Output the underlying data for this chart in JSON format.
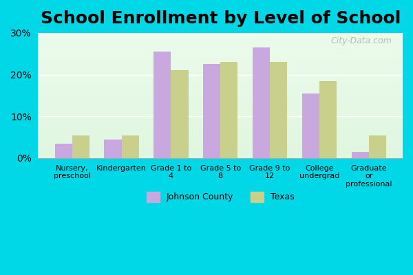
{
  "title": "School Enrollment by Level of School",
  "categories": [
    "Nursery,\npreschool",
    "Kindergarten",
    "Grade 1 to\n4",
    "Grade 5 to\n8",
    "Grade 9 to\n12",
    "College\nundergrad",
    "Graduate\nor\nprofessional"
  ],
  "johnson_county": [
    3.5,
    4.5,
    25.5,
    22.5,
    26.5,
    15.5,
    1.5
  ],
  "texas": [
    5.5,
    5.5,
    21.0,
    23.0,
    23.0,
    18.5,
    5.5
  ],
  "johnson_color": "#c9a8e0",
  "texas_color": "#c8d08c",
  "bg_color_top": "#e8f8e8",
  "bg_color_bottom": "#f8fff8",
  "outer_bg": "#00d8e8",
  "ylim": [
    0,
    30
  ],
  "yticks": [
    0,
    10,
    20,
    30
  ],
  "ytick_labels": [
    "0%",
    "10%",
    "20%",
    "30%"
  ],
  "title_fontsize": 18,
  "legend_labels": [
    "Johnson County",
    "Texas"
  ],
  "bar_width": 0.35,
  "watermark": "City-Data.com"
}
